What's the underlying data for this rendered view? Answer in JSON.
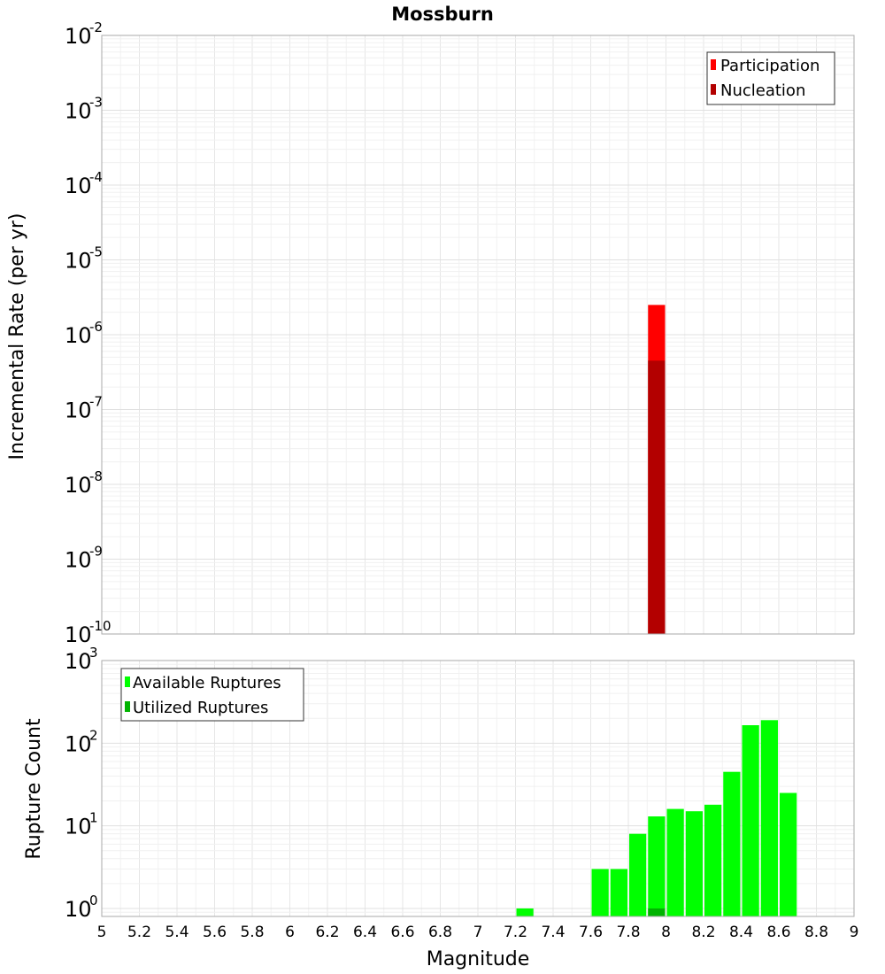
{
  "chart_data": [
    {
      "type": "bar",
      "title": "Mossburn",
      "xlabel": "",
      "ylabel": "Incremental Rate (per yr)",
      "yscale": "log",
      "xlim": [
        5,
        9
      ],
      "ylim": [
        1e-10,
        0.01
      ],
      "ytick_exponents": [
        -2,
        -3,
        -4,
        -5,
        -6,
        -7,
        -8,
        -9,
        -10
      ],
      "grid": true,
      "legend_position": "top-right",
      "series": [
        {
          "name": "Participation",
          "color": "#ff0000",
          "bars": [
            {
              "x": 7.95,
              "value": 2.5e-06
            }
          ]
        },
        {
          "name": "Nucleation",
          "color": "#b30000",
          "bars": [
            {
              "x": 7.95,
              "value": 4.5e-07
            }
          ]
        }
      ]
    },
    {
      "type": "bar",
      "title": "",
      "xlabel": "Magnitude",
      "ylabel": "Rupture Count",
      "yscale": "log",
      "xlim": [
        5,
        9
      ],
      "ylim": [
        0.8,
        1000
      ],
      "ytick_exponents": [
        3,
        2,
        1,
        0
      ],
      "xticks": [
        "5",
        "5.2",
        "5.4",
        "5.6",
        "5.8",
        "6",
        "6.2",
        "6.4",
        "6.6",
        "6.8",
        "7",
        "7.2",
        "7.4",
        "7.6",
        "7.8",
        "8",
        "8.2",
        "8.4",
        "8.6",
        "8.8",
        "9"
      ],
      "grid": true,
      "legend_position": "top-left",
      "series": [
        {
          "name": "Available Ruptures",
          "color": "#00ff00",
          "bars": [
            {
              "x": 7.25,
              "value": 1
            },
            {
              "x": 7.65,
              "value": 3
            },
            {
              "x": 7.75,
              "value": 3
            },
            {
              "x": 7.85,
              "value": 8
            },
            {
              "x": 7.95,
              "value": 13
            },
            {
              "x": 8.05,
              "value": 16
            },
            {
              "x": 8.15,
              "value": 15
            },
            {
              "x": 8.25,
              "value": 18
            },
            {
              "x": 8.35,
              "value": 45
            },
            {
              "x": 8.45,
              "value": 165
            },
            {
              "x": 8.55,
              "value": 190
            },
            {
              "x": 8.65,
              "value": 25
            }
          ]
        },
        {
          "name": "Utilized Ruptures",
          "color": "#00b300",
          "bars": [
            {
              "x": 7.95,
              "value": 1
            }
          ]
        }
      ]
    }
  ]
}
